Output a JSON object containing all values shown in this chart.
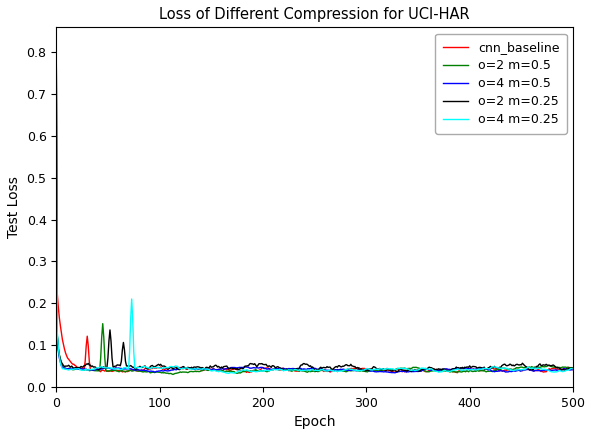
{
  "title": "Loss of Different Compression for UCI-HAR",
  "xlabel": "Epoch",
  "ylabel": "Test Loss",
  "xlim": [
    0,
    500
  ],
  "ylim": [
    0.0,
    0.86
  ],
  "legend_labels": [
    "cnn_baseline",
    "o=2 m=0.5",
    "o=4 m=0.5",
    "o=2 m=0.25",
    "o=4 m=0.25"
  ],
  "legend_colors": [
    "red",
    "green",
    "blue",
    "black",
    "cyan"
  ],
  "num_epochs": 500
}
